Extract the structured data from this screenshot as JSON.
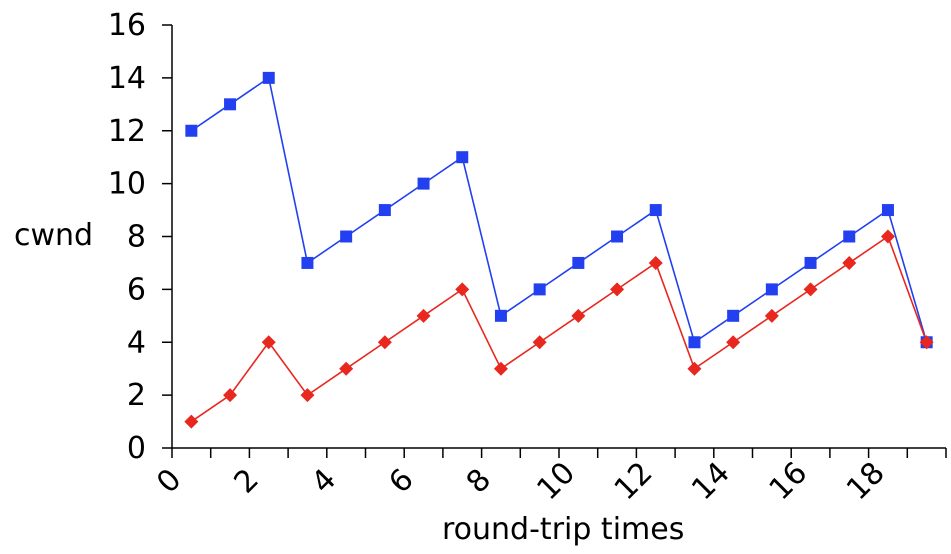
{
  "chart_data": {
    "type": "line",
    "xlabel": "round-trip times",
    "ylabel": "cwnd",
    "xlim": [
      0,
      20
    ],
    "ylim": [
      0,
      16
    ],
    "x_ticks": [
      0,
      2,
      4,
      6,
      8,
      10,
      12,
      14,
      16,
      18
    ],
    "y_ticks": [
      0,
      2,
      4,
      6,
      8,
      10,
      12,
      14,
      16
    ],
    "x_tick_labels": [
      "0",
      "2",
      "4",
      "6",
      "8",
      "10",
      "12",
      "14",
      "16",
      "18"
    ],
    "y_tick_labels": [
      "0",
      "2",
      "4",
      "6",
      "8",
      "10",
      "12",
      "14",
      "16"
    ],
    "grid": false,
    "legend": "none",
    "x": [
      0.5,
      1.5,
      2.5,
      3.5,
      4.5,
      5.5,
      6.5,
      7.5,
      8.5,
      9.5,
      10.5,
      11.5,
      12.5,
      13.5,
      14.5,
      15.5,
      16.5,
      17.5,
      18.5,
      19.5
    ],
    "series": [
      {
        "color": "#2340f0",
        "marker": "square",
        "values": [
          12,
          13,
          14,
          7,
          8,
          9,
          10,
          11,
          5,
          6,
          7,
          8,
          9,
          4,
          5,
          6,
          7,
          8,
          9,
          4
        ]
      },
      {
        "color": "#e8281e",
        "marker": "diamond",
        "values": [
          1,
          2,
          4,
          2,
          3,
          4,
          5,
          6,
          3,
          4,
          5,
          6,
          7,
          3,
          4,
          5,
          6,
          7,
          8,
          4
        ]
      }
    ]
  }
}
